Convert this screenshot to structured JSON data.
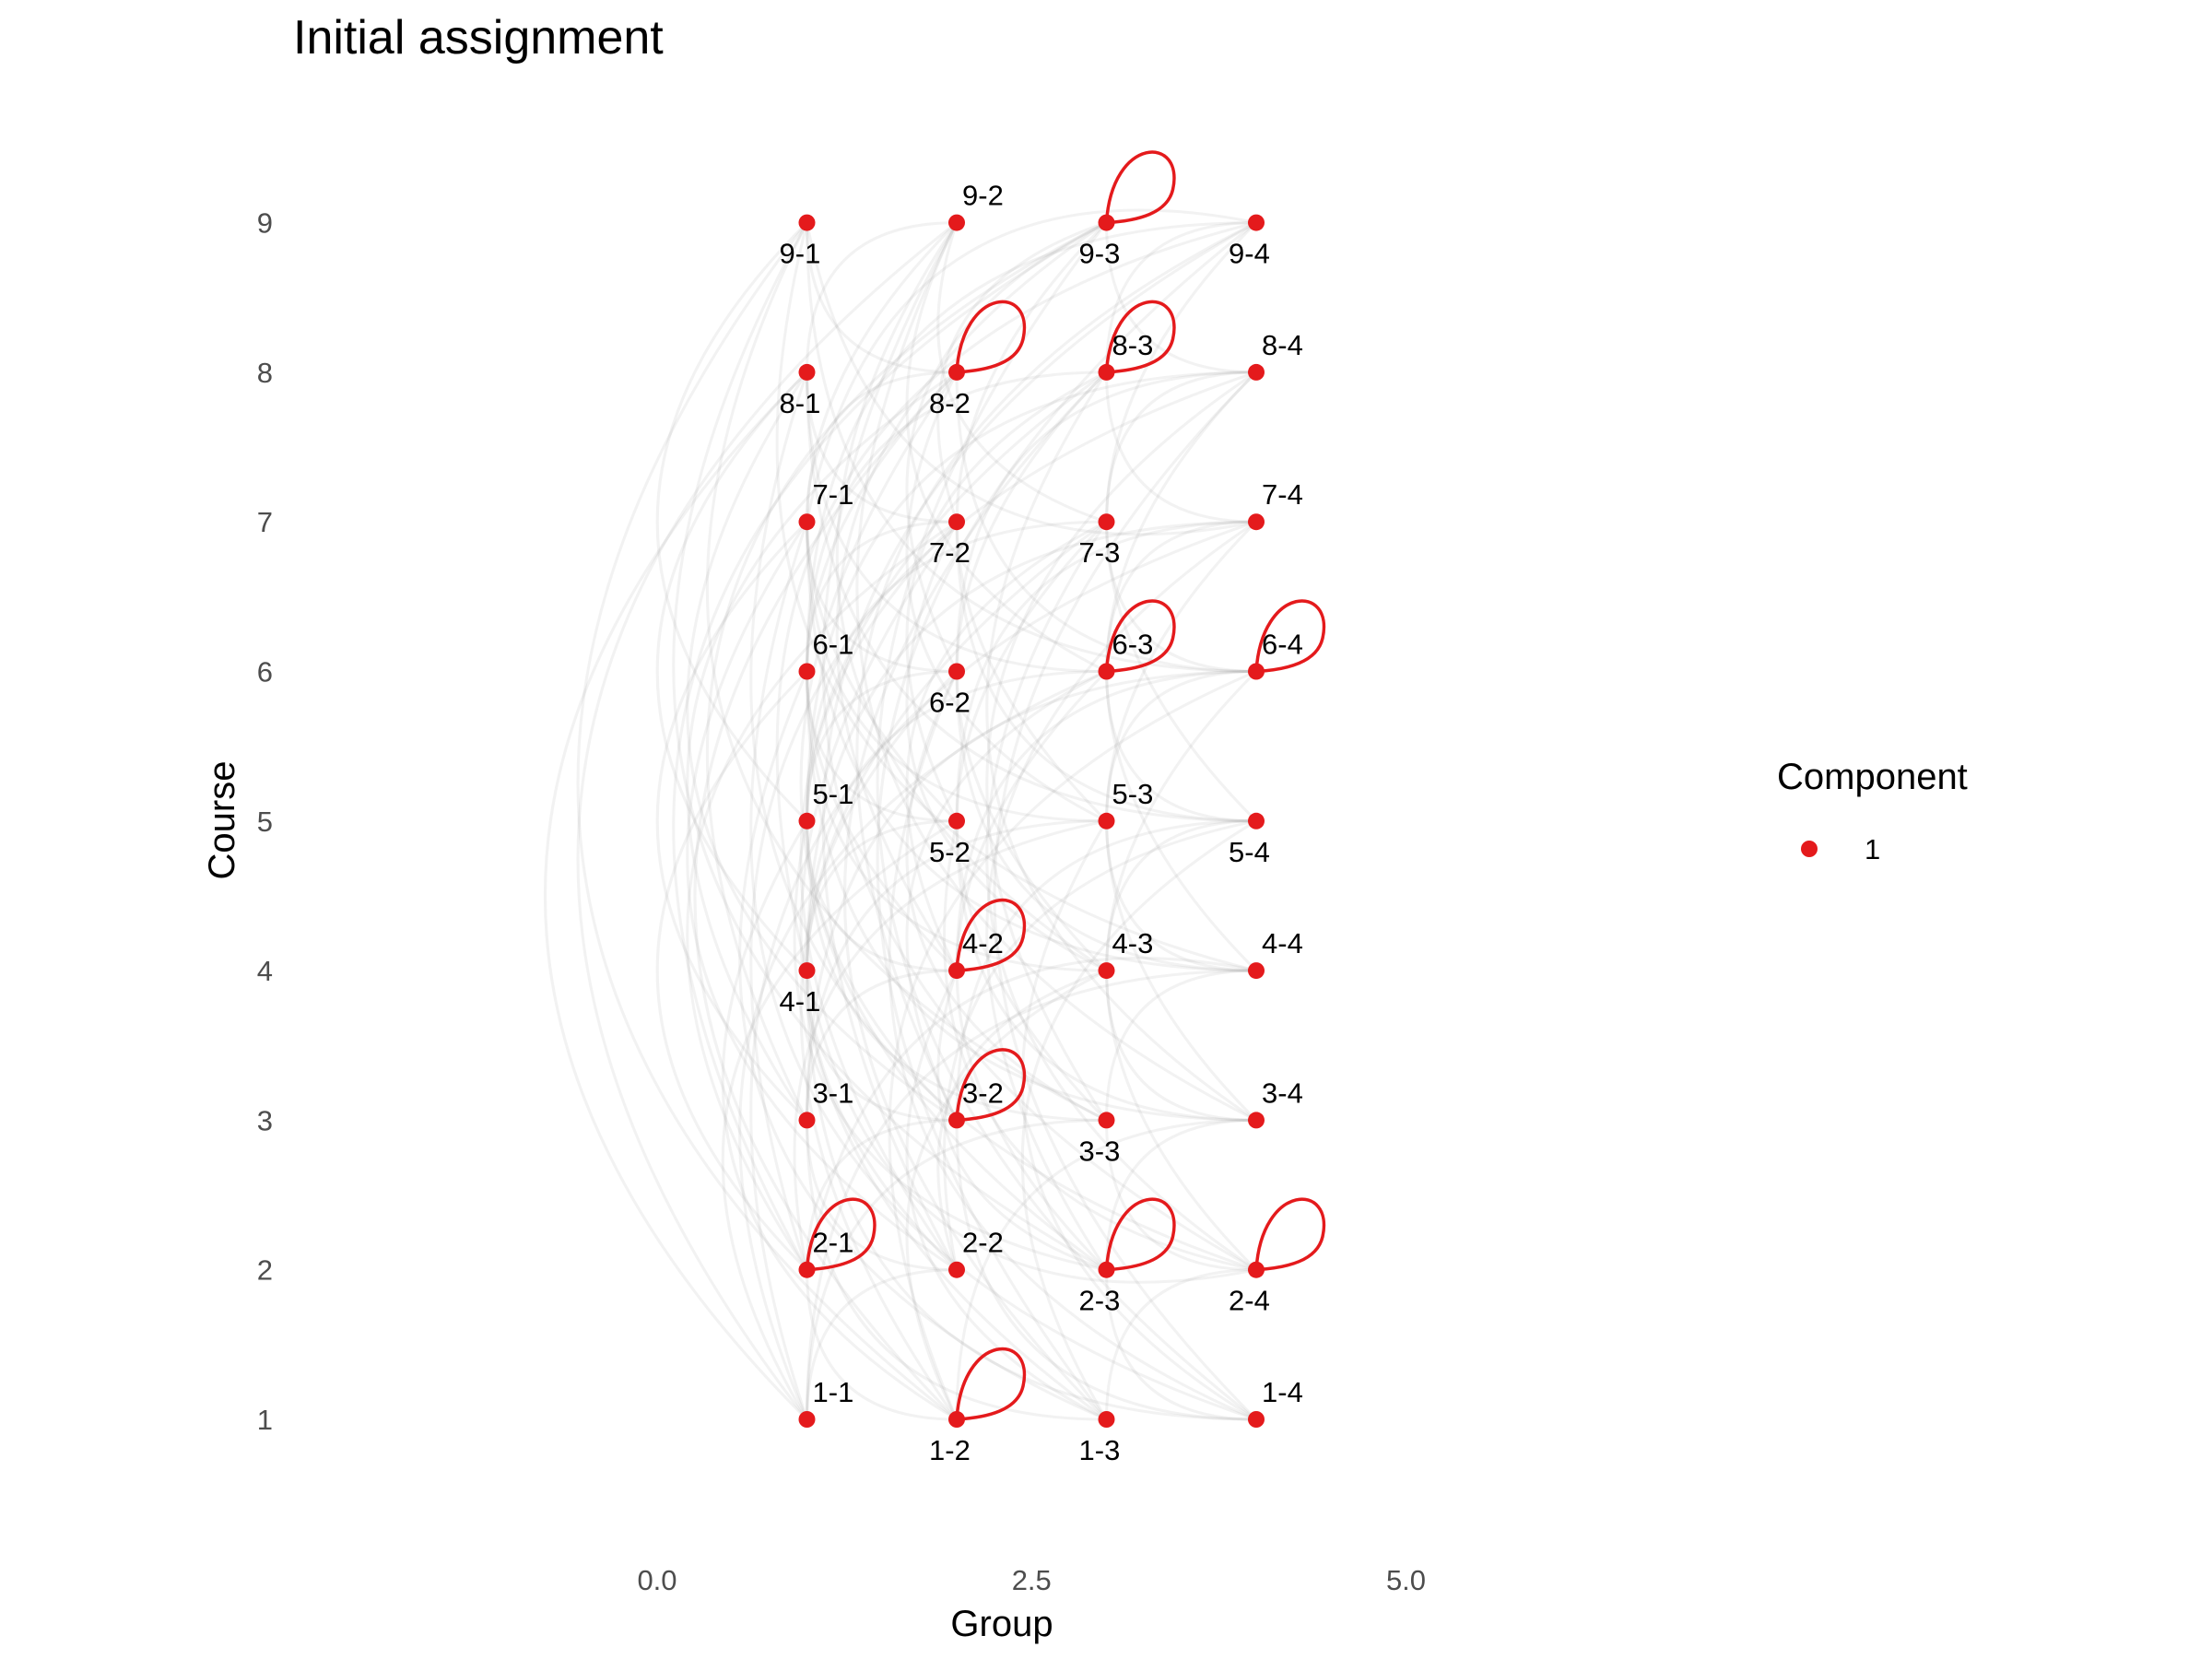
{
  "chart_data": {
    "type": "scatter",
    "title": "Initial assignment",
    "xlabel": "Group",
    "ylabel": "Course",
    "xlim": [
      -1.2,
      7.0
    ],
    "ylim": [
      0.3,
      9.6
    ],
    "xticks": [
      0.0,
      2.5,
      5.0
    ],
    "xtick_labels": [
      "0.0",
      "2.5",
      "5.0"
    ],
    "yticks": [
      1,
      2,
      3,
      4,
      5,
      6,
      7,
      8,
      9
    ],
    "grid": false,
    "legend": {
      "title": "Component",
      "placement": "right",
      "entries": [
        {
          "label": "1",
          "color": "#e41a1c"
        }
      ]
    },
    "colors": {
      "node": "#e41a1c",
      "loop": "#e41a1c",
      "edge": "#9a9a9a"
    },
    "nodes": [
      {
        "label": "1-1",
        "x": 1,
        "y": 1,
        "label_pos": "above",
        "loop": false
      },
      {
        "label": "1-2",
        "x": 2,
        "y": 1,
        "label_pos": "below",
        "loop": true
      },
      {
        "label": "1-3",
        "x": 3,
        "y": 1,
        "label_pos": "below",
        "loop": false
      },
      {
        "label": "1-4",
        "x": 4,
        "y": 1,
        "label_pos": "above",
        "loop": false
      },
      {
        "label": "2-1",
        "x": 1,
        "y": 2,
        "label_pos": "above",
        "loop": true
      },
      {
        "label": "2-2",
        "x": 2,
        "y": 2,
        "label_pos": "above",
        "loop": false
      },
      {
        "label": "2-3",
        "x": 3,
        "y": 2,
        "label_pos": "below",
        "loop": true
      },
      {
        "label": "2-4",
        "x": 4,
        "y": 2,
        "label_pos": "below",
        "loop": true
      },
      {
        "label": "3-1",
        "x": 1,
        "y": 3,
        "label_pos": "above",
        "loop": false
      },
      {
        "label": "3-2",
        "x": 2,
        "y": 3,
        "label_pos": "above",
        "loop": true
      },
      {
        "label": "3-3",
        "x": 3,
        "y": 3,
        "label_pos": "below",
        "loop": false
      },
      {
        "label": "3-4",
        "x": 4,
        "y": 3,
        "label_pos": "above",
        "loop": false
      },
      {
        "label": "4-1",
        "x": 1,
        "y": 4,
        "label_pos": "below",
        "loop": false
      },
      {
        "label": "4-2",
        "x": 2,
        "y": 4,
        "label_pos": "above",
        "loop": true
      },
      {
        "label": "4-3",
        "x": 3,
        "y": 4,
        "label_pos": "above",
        "loop": false
      },
      {
        "label": "4-4",
        "x": 4,
        "y": 4,
        "label_pos": "above",
        "loop": false
      },
      {
        "label": "5-1",
        "x": 1,
        "y": 5,
        "label_pos": "above",
        "loop": false
      },
      {
        "label": "5-2",
        "x": 2,
        "y": 5,
        "label_pos": "below",
        "loop": false
      },
      {
        "label": "5-3",
        "x": 3,
        "y": 5,
        "label_pos": "above",
        "loop": false
      },
      {
        "label": "5-4",
        "x": 4,
        "y": 5,
        "label_pos": "below",
        "loop": false
      },
      {
        "label": "6-1",
        "x": 1,
        "y": 6,
        "label_pos": "above",
        "loop": false
      },
      {
        "label": "6-2",
        "x": 2,
        "y": 6,
        "label_pos": "below",
        "loop": false
      },
      {
        "label": "6-3",
        "x": 3,
        "y": 6,
        "label_pos": "above",
        "loop": true
      },
      {
        "label": "6-4",
        "x": 4,
        "y": 6,
        "label_pos": "above",
        "loop": true
      },
      {
        "label": "7-1",
        "x": 1,
        "y": 7,
        "label_pos": "above",
        "loop": false
      },
      {
        "label": "7-2",
        "x": 2,
        "y": 7,
        "label_pos": "below",
        "loop": false
      },
      {
        "label": "7-3",
        "x": 3,
        "y": 7,
        "label_pos": "below",
        "loop": false
      },
      {
        "label": "7-4",
        "x": 4,
        "y": 7,
        "label_pos": "above",
        "loop": false
      },
      {
        "label": "8-1",
        "x": 1,
        "y": 8,
        "label_pos": "below",
        "loop": false
      },
      {
        "label": "8-2",
        "x": 2,
        "y": 8,
        "label_pos": "below",
        "loop": true
      },
      {
        "label": "8-3",
        "x": 3,
        "y": 8,
        "label_pos": "above",
        "loop": true
      },
      {
        "label": "8-4",
        "x": 4,
        "y": 8,
        "label_pos": "above",
        "loop": false
      },
      {
        "label": "9-1",
        "x": 1,
        "y": 9,
        "label_pos": "below",
        "loop": false
      },
      {
        "label": "9-2",
        "x": 2,
        "y": 9,
        "label_pos": "above",
        "loop": false
      },
      {
        "label": "9-3",
        "x": 3,
        "y": 9,
        "label_pos": "below",
        "loop": true
      },
      {
        "label": "9-4",
        "x": 4,
        "y": 9,
        "label_pos": "below",
        "loop": false
      }
    ],
    "edges": [
      [
        "1-1",
        "2-2"
      ],
      [
        "1-1",
        "3-3"
      ],
      [
        "1-1",
        "4-4"
      ],
      [
        "1-1",
        "5-2"
      ],
      [
        "1-1",
        "6-3"
      ],
      [
        "1-1",
        "7-4"
      ],
      [
        "1-1",
        "8-1"
      ],
      [
        "1-1",
        "9-2"
      ],
      [
        "1-2",
        "2-1"
      ],
      [
        "1-2",
        "3-4"
      ],
      [
        "1-2",
        "4-3"
      ],
      [
        "1-2",
        "5-1"
      ],
      [
        "1-2",
        "6-4"
      ],
      [
        "1-2",
        "7-3"
      ],
      [
        "1-2",
        "8-2"
      ],
      [
        "1-2",
        "9-1"
      ],
      [
        "1-3",
        "2-4"
      ],
      [
        "1-3",
        "3-1"
      ],
      [
        "1-3",
        "4-2"
      ],
      [
        "1-3",
        "5-4"
      ],
      [
        "1-3",
        "6-1"
      ],
      [
        "1-3",
        "7-2"
      ],
      [
        "1-3",
        "8-3"
      ],
      [
        "1-3",
        "9-4"
      ],
      [
        "1-4",
        "2-3"
      ],
      [
        "1-4",
        "3-2"
      ],
      [
        "1-4",
        "4-1"
      ],
      [
        "1-4",
        "5-3"
      ],
      [
        "1-4",
        "6-2"
      ],
      [
        "1-4",
        "7-1"
      ],
      [
        "1-4",
        "8-4"
      ],
      [
        "1-4",
        "9-3"
      ],
      [
        "2-1",
        "3-2"
      ],
      [
        "2-1",
        "4-4"
      ],
      [
        "2-1",
        "5-3"
      ],
      [
        "2-1",
        "6-1"
      ],
      [
        "2-1",
        "7-2"
      ],
      [
        "2-1",
        "8-4"
      ],
      [
        "2-1",
        "9-3"
      ],
      [
        "2-2",
        "3-1"
      ],
      [
        "2-2",
        "4-3"
      ],
      [
        "2-2",
        "5-4"
      ],
      [
        "2-2",
        "6-2"
      ],
      [
        "2-2",
        "7-1"
      ],
      [
        "2-2",
        "8-3"
      ],
      [
        "2-2",
        "9-4"
      ],
      [
        "2-3",
        "3-4"
      ],
      [
        "2-3",
        "4-2"
      ],
      [
        "2-3",
        "5-1"
      ],
      [
        "2-3",
        "6-3"
      ],
      [
        "2-3",
        "7-4"
      ],
      [
        "2-3",
        "8-2"
      ],
      [
        "2-3",
        "9-1"
      ],
      [
        "2-4",
        "3-3"
      ],
      [
        "2-4",
        "4-1"
      ],
      [
        "2-4",
        "5-2"
      ],
      [
        "2-4",
        "6-4"
      ],
      [
        "2-4",
        "7-3"
      ],
      [
        "2-4",
        "8-1"
      ],
      [
        "2-4",
        "9-2"
      ],
      [
        "3-1",
        "4-2"
      ],
      [
        "3-1",
        "5-3"
      ],
      [
        "3-1",
        "6-4"
      ],
      [
        "3-1",
        "7-1"
      ],
      [
        "3-1",
        "8-2"
      ],
      [
        "3-1",
        "9-3"
      ],
      [
        "3-2",
        "4-1"
      ],
      [
        "3-2",
        "5-4"
      ],
      [
        "3-2",
        "6-3"
      ],
      [
        "3-2",
        "7-2"
      ],
      [
        "3-2",
        "8-1"
      ],
      [
        "3-2",
        "9-4"
      ],
      [
        "3-3",
        "4-4"
      ],
      [
        "3-3",
        "5-1"
      ],
      [
        "3-3",
        "6-2"
      ],
      [
        "3-3",
        "7-3"
      ],
      [
        "3-3",
        "8-4"
      ],
      [
        "3-3",
        "9-1"
      ],
      [
        "3-4",
        "4-3"
      ],
      [
        "3-4",
        "5-2"
      ],
      [
        "3-4",
        "6-1"
      ],
      [
        "3-4",
        "7-4"
      ],
      [
        "3-4",
        "8-3"
      ],
      [
        "3-4",
        "9-2"
      ],
      [
        "4-1",
        "5-2"
      ],
      [
        "4-1",
        "6-3"
      ],
      [
        "4-1",
        "7-4"
      ],
      [
        "4-1",
        "8-1"
      ],
      [
        "4-1",
        "9-4"
      ],
      [
        "4-2",
        "5-1"
      ],
      [
        "4-2",
        "6-4"
      ],
      [
        "4-2",
        "7-3"
      ],
      [
        "4-2",
        "8-2"
      ],
      [
        "4-2",
        "9-3"
      ],
      [
        "4-3",
        "5-4"
      ],
      [
        "4-3",
        "6-1"
      ],
      [
        "4-3",
        "7-2"
      ],
      [
        "4-3",
        "8-3"
      ],
      [
        "4-3",
        "9-2"
      ],
      [
        "4-4",
        "5-3"
      ],
      [
        "4-4",
        "6-2"
      ],
      [
        "4-4",
        "7-1"
      ],
      [
        "4-4",
        "8-4"
      ],
      [
        "4-4",
        "9-1"
      ],
      [
        "5-1",
        "6-2"
      ],
      [
        "5-1",
        "7-3"
      ],
      [
        "5-1",
        "8-4"
      ],
      [
        "5-1",
        "9-1"
      ],
      [
        "5-2",
        "6-1"
      ],
      [
        "5-2",
        "7-4"
      ],
      [
        "5-2",
        "8-3"
      ],
      [
        "5-2",
        "9-2"
      ],
      [
        "5-3",
        "6-4"
      ],
      [
        "5-3",
        "7-1"
      ],
      [
        "5-3",
        "8-2"
      ],
      [
        "5-3",
        "9-3"
      ],
      [
        "5-4",
        "6-3"
      ],
      [
        "5-4",
        "7-2"
      ],
      [
        "5-4",
        "8-1"
      ],
      [
        "5-4",
        "9-4"
      ],
      [
        "6-1",
        "7-2"
      ],
      [
        "6-1",
        "8-3"
      ],
      [
        "6-1",
        "9-4"
      ],
      [
        "6-2",
        "7-1"
      ],
      [
        "6-2",
        "8-4"
      ],
      [
        "6-2",
        "9-3"
      ],
      [
        "6-3",
        "7-4"
      ],
      [
        "6-3",
        "8-1"
      ],
      [
        "6-3",
        "9-2"
      ],
      [
        "6-4",
        "7-3"
      ],
      [
        "6-4",
        "8-2"
      ],
      [
        "6-4",
        "9-1"
      ],
      [
        "7-1",
        "8-2"
      ],
      [
        "7-1",
        "9-4"
      ],
      [
        "7-2",
        "8-1"
      ],
      [
        "7-2",
        "9-3"
      ],
      [
        "7-3",
        "8-4"
      ],
      [
        "7-3",
        "9-2"
      ],
      [
        "7-4",
        "8-3"
      ],
      [
        "7-4",
        "9-1"
      ],
      [
        "8-1",
        "9-2"
      ],
      [
        "8-2",
        "9-1"
      ],
      [
        "8-3",
        "9-4"
      ],
      [
        "8-4",
        "9-3"
      ]
    ]
  }
}
